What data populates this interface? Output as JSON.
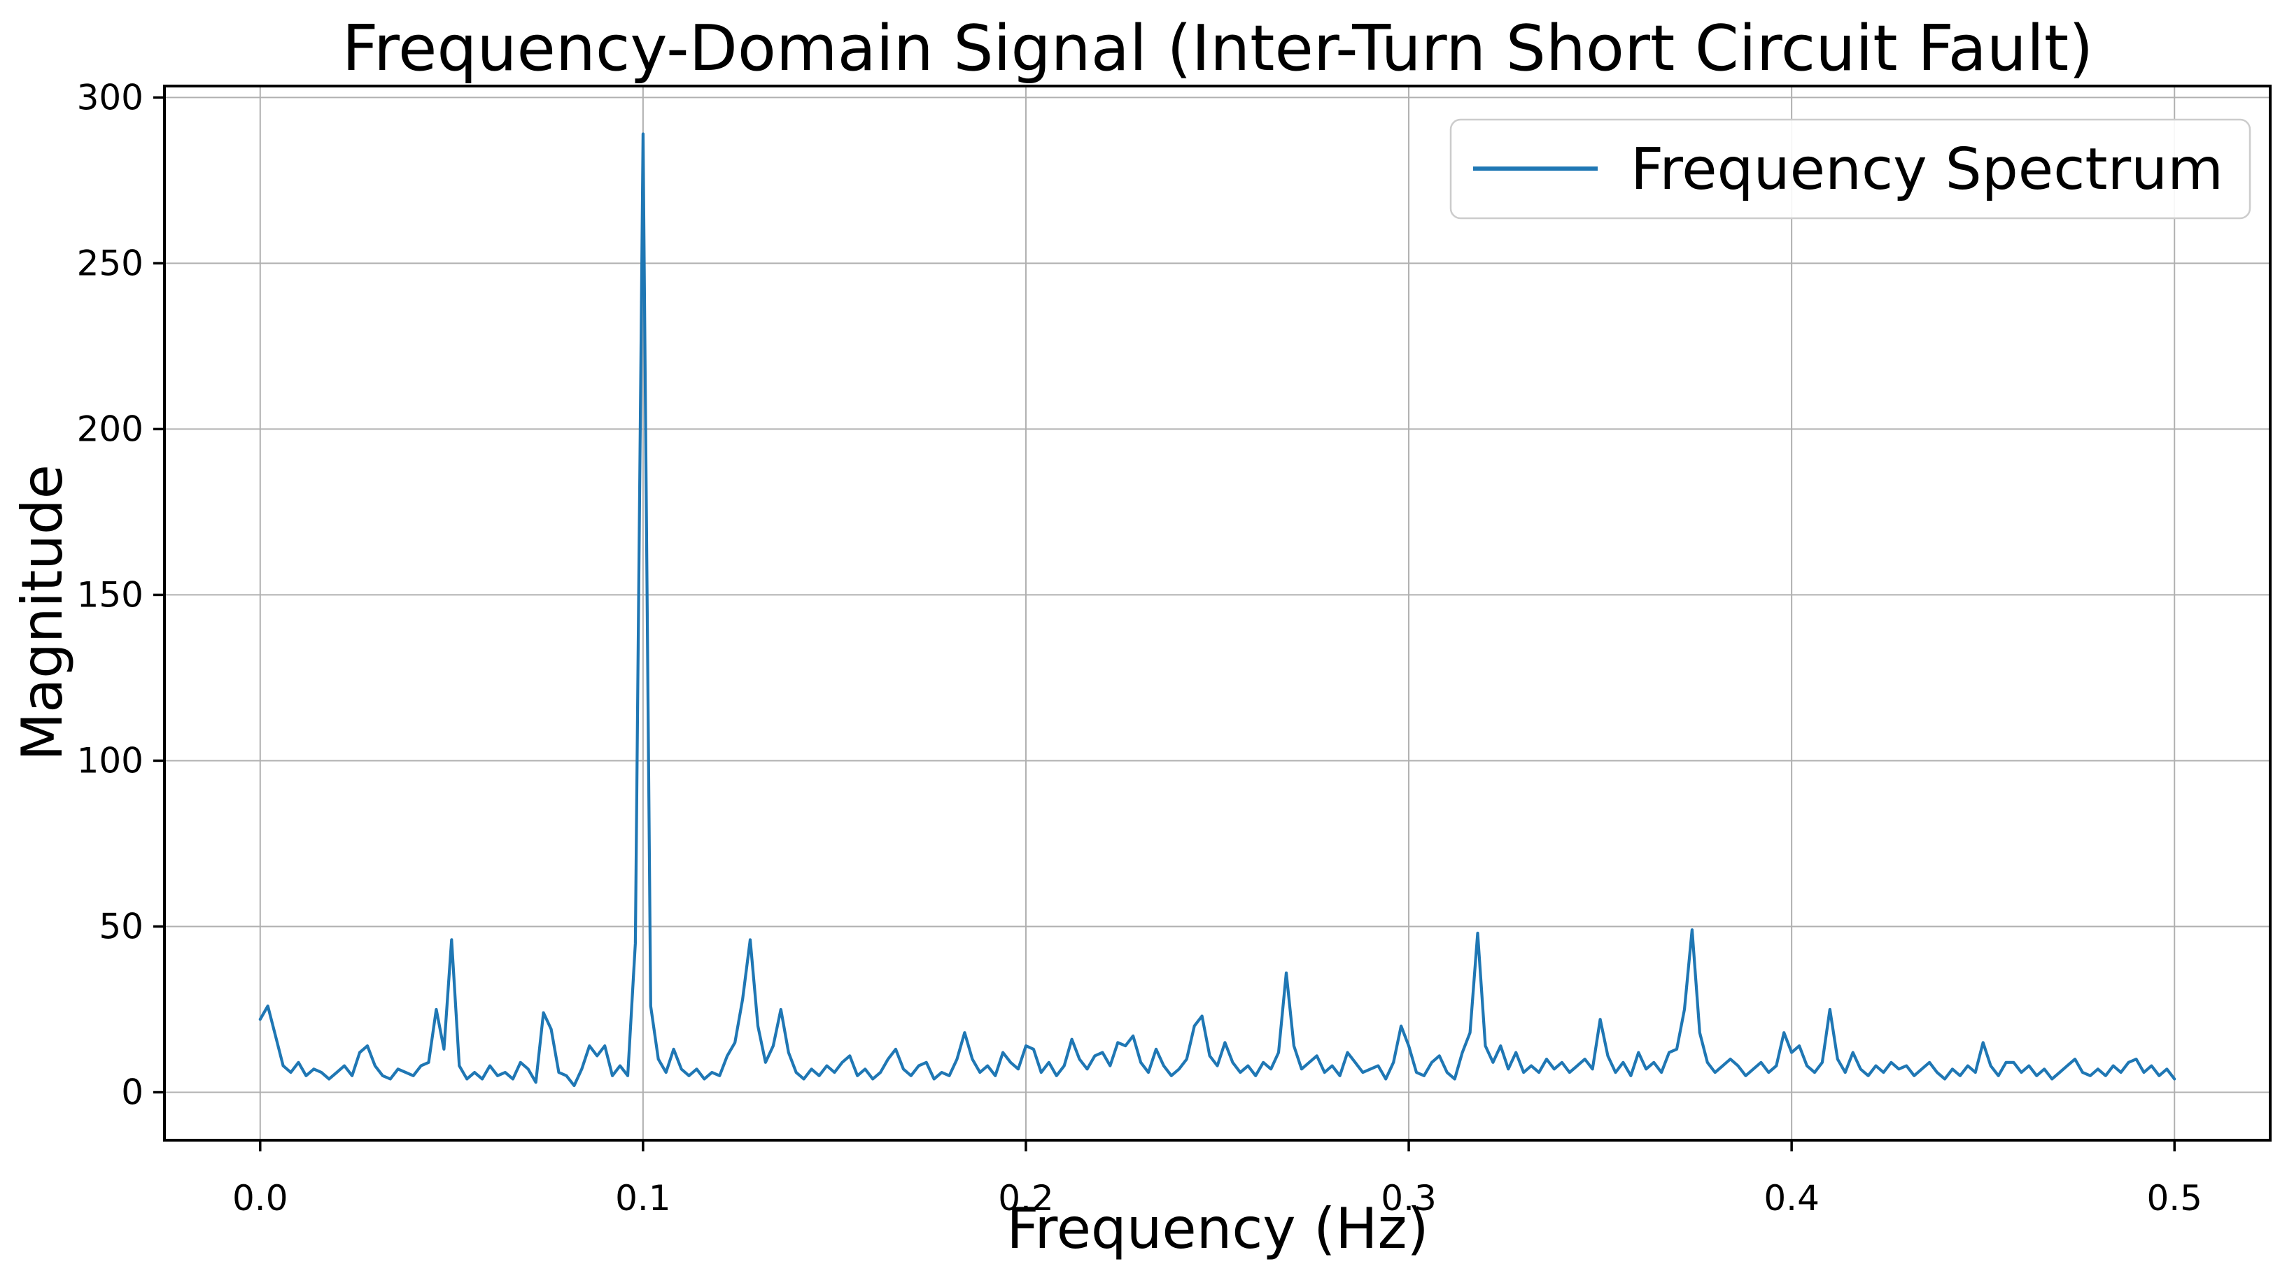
{
  "colors": {
    "line": "#1f77b4",
    "grid": "#b0b0b0",
    "spine": "#000000",
    "legend_border": "#cccccc",
    "background": "#ffffff",
    "text": "#000000"
  },
  "chart_data": {
    "type": "line",
    "title": "Frequency-Domain Signal (Inter-Turn Short Circuit Fault)",
    "xlabel": "Frequency (Hz)",
    "ylabel": "Magnitude",
    "grid": true,
    "legend": {
      "position": "upper right",
      "entries": [
        "Frequency Spectrum"
      ]
    },
    "xlim": [
      -0.025,
      0.525
    ],
    "ylim": [
      -14.45,
      303.45
    ],
    "x_ticks": [
      0.0,
      0.1,
      0.2,
      0.3,
      0.4,
      0.5
    ],
    "x_tick_labels": [
      "0.0",
      "0.1",
      "0.2",
      "0.3",
      "0.4",
      "0.5"
    ],
    "y_ticks": [
      0,
      50,
      100,
      150,
      200,
      250,
      300
    ],
    "y_tick_labels": [
      "0",
      "50",
      "100",
      "150",
      "200",
      "250",
      "300"
    ],
    "main_peak": {
      "frequency_hz": 0.1,
      "magnitude": 289
    },
    "series": [
      {
        "name": "Frequency Spectrum",
        "color": "#1f77b4",
        "f_start": 0.0,
        "f_step": 0.002,
        "values": [
          22,
          26,
          17,
          8,
          6,
          9,
          5,
          7,
          6,
          4,
          6,
          8,
          5,
          12,
          14,
          8,
          5,
          4,
          7,
          6,
          5,
          8,
          9,
          25,
          13,
          46,
          8,
          4,
          6,
          4,
          8,
          5,
          6,
          4,
          9,
          7,
          3,
          24,
          19,
          6,
          5,
          2,
          7,
          14,
          11,
          14,
          5,
          8,
          5,
          45,
          289,
          26,
          10,
          6,
          13,
          7,
          5,
          7,
          4,
          6,
          5,
          11,
          15,
          28,
          46,
          20,
          9,
          14,
          25,
          12,
          6,
          4,
          7,
          5,
          8,
          6,
          9,
          11,
          5,
          7,
          4,
          6,
          10,
          13,
          7,
          5,
          8,
          9,
          4,
          6,
          5,
          10,
          18,
          10,
          6,
          8,
          5,
          12,
          9,
          7,
          14,
          13,
          6,
          9,
          5,
          8,
          16,
          10,
          7,
          11,
          12,
          8,
          15,
          14,
          17,
          9,
          6,
          13,
          8,
          5,
          7,
          10,
          20,
          23,
          11,
          8,
          15,
          9,
          6,
          8,
          5,
          9,
          7,
          12,
          36,
          14,
          7,
          9,
          11,
          6,
          8,
          5,
          12,
          9,
          6,
          7,
          8,
          4,
          9,
          20,
          14,
          6,
          5,
          9,
          11,
          6,
          4,
          12,
          18,
          48,
          14,
          9,
          14,
          7,
          12,
          6,
          8,
          6,
          10,
          7,
          9,
          6,
          8,
          10,
          7,
          22,
          11,
          6,
          9,
          5,
          12,
          7,
          9,
          6,
          12,
          13,
          25,
          49,
          18,
          9,
          6,
          8,
          10,
          8,
          5,
          7,
          9,
          6,
          8,
          18,
          12,
          14,
          8,
          6,
          9,
          25,
          10,
          6,
          12,
          7,
          5,
          8,
          6,
          9,
          7,
          8,
          5,
          7,
          9,
          6,
          4,
          7,
          5,
          8,
          6,
          15,
          8,
          5,
          9,
          9,
          6,
          8,
          5,
          7,
          4,
          6,
          8,
          10,
          6,
          5,
          7,
          5,
          8,
          6,
          9,
          10,
          6,
          8,
          5,
          7,
          4
        ]
      }
    ]
  }
}
